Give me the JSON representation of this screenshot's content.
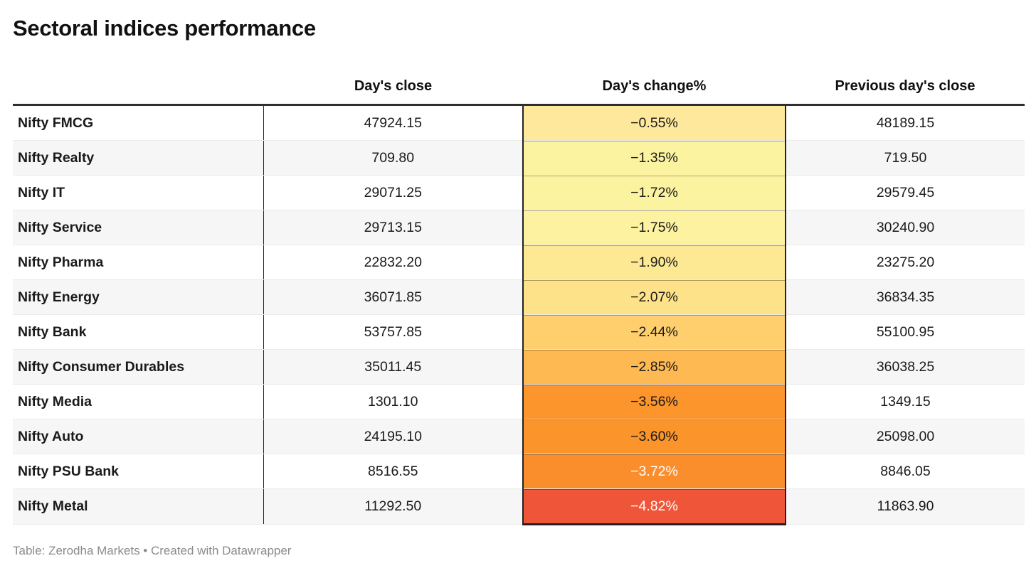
{
  "title": "Sectoral indices performance",
  "footer": "Table: Zerodha Markets • Created with Datawrapper",
  "chart_data": {
    "type": "table",
    "title": "Sectoral indices performance",
    "columns": {
      "label": "",
      "close": "Day's close",
      "change": "Day's change%",
      "prev": "Previous day's close"
    },
    "heatmap_note": "Day's change% column shaded yellow-to-red as losses deepen",
    "rows": [
      {
        "label": "Nifty FMCG",
        "close": "47924.15",
        "change": "−0.55%",
        "prev": "48189.15",
        "bg": "#fde89b",
        "fg": "#1a1a1a"
      },
      {
        "label": "Nifty Realty",
        "close": "709.80",
        "change": "−1.35%",
        "prev": "719.50",
        "bg": "#fcf3a1",
        "fg": "#1a1a1a"
      },
      {
        "label": "Nifty IT",
        "close": "29071.25",
        "change": "−1.72%",
        "prev": "29579.45",
        "bg": "#fcf3a0",
        "fg": "#1a1a1a"
      },
      {
        "label": "Nifty Service",
        "close": "29713.15",
        "change": "−1.75%",
        "prev": "30240.90",
        "bg": "#fcf2a0",
        "fg": "#1a1a1a"
      },
      {
        "label": "Nifty Pharma",
        "close": "22832.20",
        "change": "−1.90%",
        "prev": "23275.20",
        "bg": "#fde993",
        "fg": "#1a1a1a"
      },
      {
        "label": "Nifty Energy",
        "close": "36071.85",
        "change": "−2.07%",
        "prev": "36834.35",
        "bg": "#fde289",
        "fg": "#1a1a1a"
      },
      {
        "label": "Nifty Bank",
        "close": "53757.85",
        "change": "−2.44%",
        "prev": "55100.95",
        "bg": "#ffcf6e",
        "fg": "#1a1a1a"
      },
      {
        "label": "Nifty Consumer Durables",
        "close": "35011.45",
        "change": "−2.85%",
        "prev": "36038.25",
        "bg": "#feb952",
        "fg": "#1a1a1a"
      },
      {
        "label": "Nifty Media",
        "close": "1301.10",
        "change": "−3.56%",
        "prev": "1349.15",
        "bg": "#fc952b",
        "fg": "#1a1a1a"
      },
      {
        "label": "Nifty Auto",
        "close": "24195.10",
        "change": "−3.60%",
        "prev": "25098.00",
        "bg": "#fc942c",
        "fg": "#1a1a1a"
      },
      {
        "label": "Nifty PSU Bank",
        "close": "8516.55",
        "change": "−3.72%",
        "prev": "8846.05",
        "bg": "#fa8e2d",
        "fg": "#ffffff"
      },
      {
        "label": "Nifty Metal",
        "close": "11292.50",
        "change": "−4.82%",
        "prev": "11863.90",
        "bg": "#ef5539",
        "fg": "#ffffff"
      }
    ]
  }
}
